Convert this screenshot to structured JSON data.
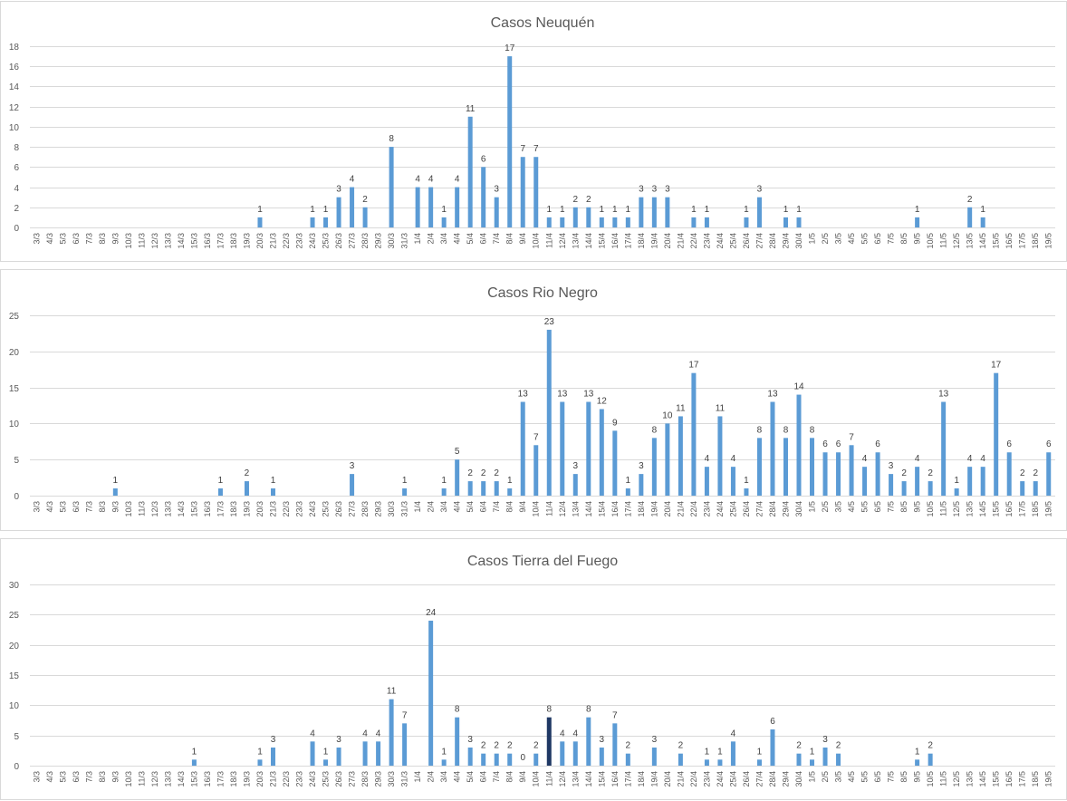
{
  "chart_data": [
    {
      "type": "bar",
      "title": "Casos Neuquén",
      "ylim": [
        0,
        18
      ],
      "yticks": [
        0,
        2,
        4,
        6,
        8,
        10,
        12,
        14,
        16,
        18
      ],
      "grid": true,
      "categories": [
        "3/3",
        "4/3",
        "5/3",
        "6/3",
        "7/3",
        "8/3",
        "9/3",
        "10/3",
        "11/3",
        "12/3",
        "13/3",
        "14/3",
        "15/3",
        "16/3",
        "17/3",
        "18/3",
        "19/3",
        "20/3",
        "21/3",
        "22/3",
        "23/3",
        "24/3",
        "25/3",
        "26/3",
        "27/3",
        "28/3",
        "29/3",
        "30/3",
        "31/3",
        "1/4",
        "2/4",
        "3/4",
        "4/4",
        "5/4",
        "6/4",
        "7/4",
        "8/4",
        "9/4",
        "10/4",
        "11/4",
        "12/4",
        "13/4",
        "14/4",
        "15/4",
        "16/4",
        "17/4",
        "18/4",
        "19/4",
        "20/4",
        "21/4",
        "22/4",
        "23/4",
        "24/4",
        "25/4",
        "26/4",
        "27/4",
        "28/4",
        "29/4",
        "30/4",
        "1/5",
        "2/5",
        "3/5",
        "4/5",
        "5/5",
        "6/5",
        "7/5",
        "8/5",
        "9/5",
        "10/5",
        "11/5",
        "12/5",
        "13/5",
        "14/5",
        "15/5",
        "16/5",
        "17/5",
        "18/5",
        "19/5"
      ],
      "values": [
        null,
        null,
        null,
        null,
        null,
        null,
        null,
        null,
        null,
        null,
        null,
        null,
        null,
        null,
        null,
        null,
        null,
        1,
        null,
        null,
        null,
        1,
        1,
        3,
        4,
        2,
        null,
        8,
        null,
        4,
        4,
        1,
        4,
        11,
        6,
        3,
        17,
        7,
        7,
        1,
        1,
        2,
        2,
        1,
        1,
        1,
        3,
        3,
        3,
        null,
        1,
        1,
        null,
        null,
        1,
        3,
        null,
        1,
        1,
        null,
        null,
        null,
        null,
        null,
        null,
        null,
        null,
        1,
        null,
        null,
        null,
        2,
        1,
        null,
        null,
        null,
        null,
        null
      ]
    },
    {
      "type": "bar",
      "title": "Casos Rio Negro",
      "ylim": [
        0,
        25
      ],
      "yticks": [
        0,
        5,
        10,
        15,
        20,
        25
      ],
      "grid": true,
      "categories": [
        "3/3",
        "4/3",
        "5/3",
        "6/3",
        "7/3",
        "8/3",
        "9/3",
        "10/3",
        "11/3",
        "12/3",
        "13/3",
        "14/3",
        "15/3",
        "16/3",
        "17/3",
        "18/3",
        "19/3",
        "20/3",
        "21/3",
        "22/3",
        "23/3",
        "24/3",
        "25/3",
        "26/3",
        "27/3",
        "28/3",
        "29/3",
        "30/3",
        "31/3",
        "1/4",
        "2/4",
        "3/4",
        "4/4",
        "5/4",
        "6/4",
        "7/4",
        "8/4",
        "9/4",
        "10/4",
        "11/4",
        "12/4",
        "13/4",
        "14/4",
        "15/4",
        "16/4",
        "17/4",
        "18/4",
        "19/4",
        "20/4",
        "21/4",
        "22/4",
        "23/4",
        "24/4",
        "25/4",
        "26/4",
        "27/4",
        "28/4",
        "29/4",
        "30/4",
        "1/5",
        "2/5",
        "3/5",
        "4/5",
        "5/5",
        "6/5",
        "7/5",
        "8/5",
        "9/5",
        "10/5",
        "11/5",
        "12/5",
        "13/5",
        "14/5",
        "15/5",
        "16/5",
        "17/5",
        "18/5",
        "19/5"
      ],
      "values": [
        null,
        null,
        null,
        null,
        null,
        null,
        1,
        null,
        null,
        null,
        null,
        null,
        null,
        null,
        1,
        null,
        2,
        null,
        1,
        null,
        null,
        null,
        null,
        null,
        3,
        null,
        null,
        null,
        1,
        null,
        null,
        1,
        5,
        2,
        2,
        2,
        1,
        13,
        7,
        23,
        13,
        3,
        13,
        12,
        9,
        1,
        3,
        8,
        10,
        11,
        17,
        4,
        11,
        4,
        1,
        8,
        13,
        8,
        14,
        8,
        6,
        6,
        7,
        4,
        6,
        3,
        2,
        4,
        2,
        13,
        1,
        4,
        4,
        17,
        6,
        2,
        2,
        6
      ]
    },
    {
      "type": "bar",
      "title": "Casos Tierra del Fuego",
      "ylim": [
        0,
        30
      ],
      "yticks": [
        0,
        5,
        10,
        15,
        20,
        25,
        30
      ],
      "grid": true,
      "highlight_category": "11/4",
      "categories": [
        "3/3",
        "4/3",
        "5/3",
        "6/3",
        "7/3",
        "8/3",
        "9/3",
        "10/3",
        "11/3",
        "12/3",
        "13/3",
        "14/3",
        "15/3",
        "16/3",
        "17/3",
        "18/3",
        "19/3",
        "20/3",
        "21/3",
        "22/3",
        "23/3",
        "24/3",
        "25/3",
        "26/3",
        "27/3",
        "28/3",
        "29/3",
        "30/3",
        "31/3",
        "1/4",
        "2/4",
        "3/4",
        "4/4",
        "5/4",
        "6/4",
        "7/4",
        "8/4",
        "9/4",
        "10/4",
        "11/4",
        "12/4",
        "13/4",
        "14/4",
        "15/4",
        "16/4",
        "17/4",
        "18/4",
        "19/4",
        "20/4",
        "21/4",
        "22/4",
        "23/4",
        "24/4",
        "25/4",
        "26/4",
        "27/4",
        "28/4",
        "29/4",
        "30/4",
        "1/5",
        "2/5",
        "3/5",
        "4/5",
        "5/5",
        "6/5",
        "7/5",
        "8/5",
        "9/5",
        "10/5",
        "11/5",
        "12/5",
        "13/5",
        "14/5",
        "15/5",
        "16/5",
        "17/5",
        "18/5",
        "19/5"
      ],
      "values": [
        null,
        null,
        null,
        null,
        null,
        null,
        null,
        null,
        null,
        null,
        null,
        null,
        1,
        null,
        null,
        null,
        null,
        1,
        3,
        null,
        null,
        4,
        1,
        3,
        null,
        4,
        4,
        11,
        7,
        null,
        24,
        1,
        8,
        3,
        2,
        2,
        2,
        0,
        2,
        8,
        4,
        4,
        8,
        3,
        7,
        2,
        null,
        3,
        null,
        2,
        null,
        1,
        1,
        4,
        null,
        1,
        6,
        null,
        2,
        1,
        3,
        2,
        null,
        null,
        null,
        null,
        null,
        1,
        2,
        null,
        null,
        null,
        null,
        null,
        null,
        null,
        null,
        null
      ]
    }
  ],
  "colors": {
    "bar": "#5b9bd5",
    "highlight_bar": "#1f3864",
    "grid": "#d9d9d9",
    "text": "#595959"
  }
}
